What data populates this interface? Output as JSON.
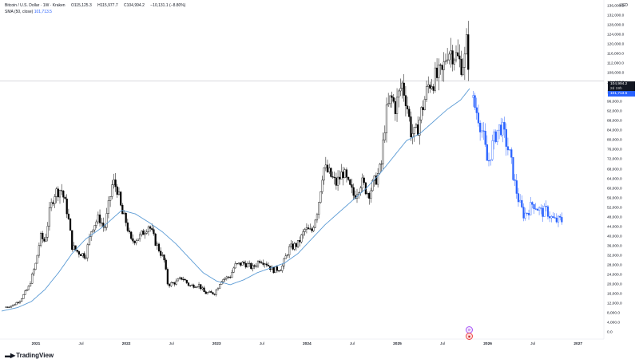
{
  "header": {
    "symbol": "Bitcoin / U.S. Dollar · 1W · Kraken",
    "open": "O115,125.3",
    "high": "H115,977.7",
    "close": "C104,994.2",
    "change": "−10,131.1 (−8.80%)",
    "sma_label": "SMA (50, close)",
    "sma_value": "101,713.5"
  },
  "currency": "USD",
  "badges": {
    "last_price": "104,994.2",
    "countdown": "2d 19h",
    "sma": "101,713.5"
  },
  "branding": {
    "logo_text": "TradingView"
  },
  "colors": {
    "candle_up": "#ffffff",
    "candle_down": "#000000",
    "candle_outline": "#000000",
    "projection": "#2962ff",
    "sma": "#5b9bd5",
    "price_line": "#b2b5be"
  },
  "chart_data": {
    "type": "candlestick",
    "title": "",
    "xlabel": "",
    "ylabel": "",
    "ylim": [
      0,
      136000
    ],
    "y_ticks": [
      "0.0",
      "4,000.0",
      "8,000.0",
      "12,000.0",
      "16,000.0",
      "20,000.0",
      "24,000.0",
      "28,000.0",
      "32,000.0",
      "36,000.0",
      "40,000.0",
      "44,000.0",
      "48,000.0",
      "52,000.0",
      "56,000.0",
      "60,000.0",
      "64,000.0",
      "68,000.0",
      "72,000.0",
      "76,000.0",
      "80,000.0",
      "84,000.0",
      "88,000.0",
      "92,000.0",
      "96,000.0",
      "100,000.0",
      "104,000.0",
      "108,000.0",
      "112,000.0",
      "116,000.0",
      "120,000.0",
      "124,000.0",
      "128,000.0",
      "132,000.0",
      "136,000.0"
    ],
    "x_ticks": [
      {
        "label": "2021",
        "t": 2021.0,
        "year": true
      },
      {
        "label": "Jul",
        "t": 2021.5,
        "year": false
      },
      {
        "label": "2022",
        "t": 2022.0,
        "year": true
      },
      {
        "label": "Jul",
        "t": 2022.5,
        "year": false
      },
      {
        "label": "2023",
        "t": 2023.0,
        "year": true
      },
      {
        "label": "Jul",
        "t": 2023.5,
        "year": false
      },
      {
        "label": "2024",
        "t": 2024.0,
        "year": true
      },
      {
        "label": "Jul",
        "t": 2024.5,
        "year": false
      },
      {
        "label": "2025",
        "t": 2025.0,
        "year": true
      },
      {
        "label": "Jul",
        "t": 2025.5,
        "year": false
      },
      {
        "label": "2026",
        "t": 2026.0,
        "year": true
      },
      {
        "label": "Jul",
        "t": 2026.5,
        "year": false
      },
      {
        "label": "2027",
        "t": 2027.0,
        "year": true
      }
    ],
    "x_range": [
      2020.62,
      2027.25
    ],
    "last_price": 104994.2,
    "price_anchors": [
      [
        2020.65,
        10500
      ],
      [
        2020.75,
        11500
      ],
      [
        2020.83,
        13800
      ],
      [
        2020.92,
        19000
      ],
      [
        2021.0,
        29000
      ],
      [
        2021.05,
        40000
      ],
      [
        2021.1,
        38000
      ],
      [
        2021.15,
        50000
      ],
      [
        2021.2,
        58000
      ],
      [
        2021.28,
        60000
      ],
      [
        2021.35,
        50000
      ],
      [
        2021.4,
        36000
      ],
      [
        2021.45,
        34000
      ],
      [
        2021.55,
        32000
      ],
      [
        2021.62,
        44000
      ],
      [
        2021.7,
        48000
      ],
      [
        2021.76,
        43000
      ],
      [
        2021.85,
        63000
      ],
      [
        2021.9,
        60000
      ],
      [
        2021.95,
        50000
      ],
      [
        2022.0,
        46000
      ],
      [
        2022.05,
        38000
      ],
      [
        2022.15,
        40000
      ],
      [
        2022.25,
        45000
      ],
      [
        2022.32,
        38000
      ],
      [
        2022.42,
        30000
      ],
      [
        2022.46,
        20000
      ],
      [
        2022.55,
        21000
      ],
      [
        2022.62,
        23000
      ],
      [
        2022.7,
        19500
      ],
      [
        2022.8,
        20000
      ],
      [
        2022.87,
        16500
      ],
      [
        2022.98,
        16500
      ],
      [
        2023.05,
        22000
      ],
      [
        2023.15,
        23500
      ],
      [
        2023.2,
        28000
      ],
      [
        2023.3,
        29000
      ],
      [
        2023.4,
        27000
      ],
      [
        2023.48,
        30500
      ],
      [
        2023.55,
        29000
      ],
      [
        2023.62,
        26000
      ],
      [
        2023.72,
        27000
      ],
      [
        2023.8,
        35000
      ],
      [
        2023.9,
        37000
      ],
      [
        2023.98,
        43000
      ],
      [
        2024.05,
        42000
      ],
      [
        2024.12,
        52000
      ],
      [
        2024.18,
        69000
      ],
      [
        2024.25,
        66000
      ],
      [
        2024.32,
        62000
      ],
      [
        2024.4,
        67000
      ],
      [
        2024.45,
        62000
      ],
      [
        2024.52,
        57000
      ],
      [
        2024.6,
        63000
      ],
      [
        2024.68,
        58000
      ],
      [
        2024.75,
        63000
      ],
      [
        2024.82,
        69000
      ],
      [
        2024.87,
        90000
      ],
      [
        2024.93,
        98000
      ],
      [
        2024.98,
        94000
      ],
      [
        2025.05,
        104000
      ],
      [
        2025.1,
        97000
      ],
      [
        2025.15,
        84000
      ],
      [
        2025.2,
        82000
      ],
      [
        2025.28,
        94000
      ],
      [
        2025.35,
        104000
      ],
      [
        2025.42,
        106000
      ],
      [
        2025.5,
        108000
      ],
      [
        2025.55,
        118000
      ],
      [
        2025.62,
        117000
      ],
      [
        2025.7,
        112000
      ],
      [
        2025.75,
        114000
      ],
      [
        2025.77,
        122000
      ],
      [
        2025.8,
        104994
      ]
    ],
    "projection_anchors": [
      [
        2025.82,
        98000
      ],
      [
        2025.86,
        94000
      ],
      [
        2025.9,
        90000
      ],
      [
        2025.95,
        82000
      ],
      [
        2026.0,
        70000
      ],
      [
        2026.05,
        78000
      ],
      [
        2026.1,
        84000
      ],
      [
        2026.15,
        86000
      ],
      [
        2026.2,
        80000
      ],
      [
        2026.25,
        73000
      ],
      [
        2026.3,
        62000
      ],
      [
        2026.35,
        54000
      ],
      [
        2026.4,
        49000
      ],
      [
        2026.45,
        51000
      ],
      [
        2026.5,
        54000
      ],
      [
        2026.55,
        52000
      ],
      [
        2026.6,
        50000
      ],
      [
        2026.65,
        51000
      ],
      [
        2026.7,
        48000
      ],
      [
        2026.75,
        46500
      ],
      [
        2026.8,
        47000
      ],
      [
        2026.83,
        46500
      ]
    ],
    "sma_anchors": [
      [
        2020.62,
        9000
      ],
      [
        2020.8,
        10500
      ],
      [
        2020.95,
        13000
      ],
      [
        2021.1,
        18000
      ],
      [
        2021.25,
        25000
      ],
      [
        2021.4,
        33000
      ],
      [
        2021.55,
        39000
      ],
      [
        2021.7,
        43000
      ],
      [
        2021.8,
        46000
      ],
      [
        2021.95,
        51000
      ],
      [
        2022.1,
        49500
      ],
      [
        2022.25,
        46000
      ],
      [
        2022.4,
        42000
      ],
      [
        2022.55,
        37000
      ],
      [
        2022.7,
        31000
      ],
      [
        2022.85,
        25000
      ],
      [
        2023.0,
        21500
      ],
      [
        2023.15,
        20000
      ],
      [
        2023.3,
        22000
      ],
      [
        2023.45,
        25000
      ],
      [
        2023.6,
        27000
      ],
      [
        2023.75,
        29000
      ],
      [
        2023.9,
        33000
      ],
      [
        2024.05,
        39000
      ],
      [
        2024.2,
        45000
      ],
      [
        2024.35,
        50000
      ],
      [
        2024.5,
        55000
      ],
      [
        2024.65,
        60000
      ],
      [
        2024.8,
        66000
      ],
      [
        2024.95,
        73000
      ],
      [
        2025.1,
        80000
      ],
      [
        2025.25,
        83000
      ],
      [
        2025.4,
        88000
      ],
      [
        2025.55,
        93000
      ],
      [
        2025.7,
        97000
      ],
      [
        2025.8,
        101713
      ]
    ]
  }
}
